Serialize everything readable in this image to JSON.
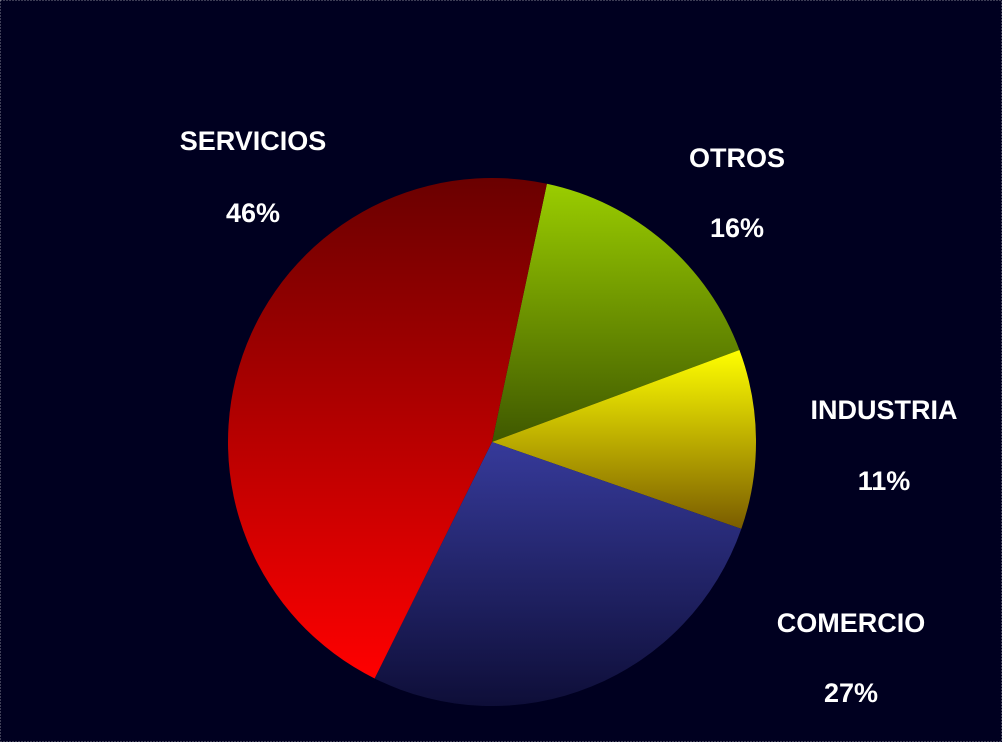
{
  "chart_data": {
    "type": "pie",
    "categories": [
      "OTROS",
      "INDUSTRIA",
      "COMERCIO",
      "SERVICIOS"
    ],
    "values": [
      16,
      11,
      27,
      46
    ],
    "value_labels": [
      "16%",
      "11%",
      "27%",
      "46%"
    ],
    "colors": [
      [
        "#9acd00",
        "#3f5800"
      ],
      [
        "#ffff00",
        "#7a5c00"
      ],
      [
        "#363a9a",
        "#0e0e38"
      ],
      [
        "#6a0000",
        "#ff0000"
      ]
    ],
    "start_angle": 12
  }
}
